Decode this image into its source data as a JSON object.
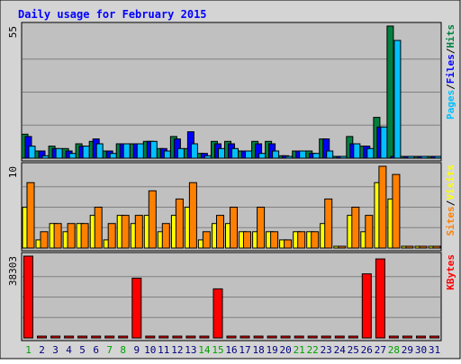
{
  "chart_data": {
    "type": "bar",
    "title": "Daily usage for February 2015",
    "categories": [
      "1",
      "2",
      "3",
      "4",
      "5",
      "6",
      "7",
      "8",
      "9",
      "10",
      "11",
      "12",
      "13",
      "14",
      "15",
      "16",
      "17",
      "18",
      "19",
      "20",
      "21",
      "22",
      "23",
      "24",
      "25",
      "26",
      "27",
      "28",
      "29",
      "30",
      "31"
    ],
    "weekend_days": [
      "1",
      "7",
      "8",
      "14",
      "15",
      "21",
      "22",
      "28"
    ],
    "colors": {
      "hits": "#008040",
      "files": "#0000ff",
      "pages": "#00c0ff",
      "visits": "#ffff00",
      "sites": "#ff8000",
      "kbytes": "#ff0000",
      "plot_bg": "#c0c0c0",
      "frame_bg": "#d4d4d4",
      "title_text": "#0000ff",
      "day_label": "#000080",
      "weekend_label": "#00a000"
    },
    "panels": [
      {
        "id": "hits",
        "max_label": "55",
        "ymax": 55,
        "right_legend": [
          {
            "text": "Pages",
            "color": "#00c0ff"
          },
          {
            "text": "/",
            "color": "#000000"
          },
          {
            "text": "Files",
            "color": "#0000ff"
          },
          {
            "text": "/",
            "color": "#000000"
          },
          {
            "text": "Hits",
            "color": "#008040"
          }
        ],
        "series": [
          {
            "name": "Hits",
            "color": "#008040",
            "values": [
              10,
              3,
              5,
              4,
              6,
              7,
              3,
              6,
              6,
              7,
              4,
              9,
              4,
              2,
              7,
              7,
              3,
              7,
              7,
              1,
              3,
              3,
              8,
              0,
              9,
              5,
              17,
              55,
              0,
              0,
              0
            ]
          },
          {
            "name": "Files",
            "color": "#0000ff",
            "values": [
              9,
              3,
              4,
              3,
              5,
              8,
              3,
              6,
              6,
              7,
              4,
              8,
              11,
              2,
              6,
              6,
              3,
              6,
              6,
              1,
              3,
              2,
              8,
              0,
              6,
              5,
              13,
              0,
              0,
              0,
              0
            ]
          },
          {
            "name": "Pages",
            "color": "#00c0ff",
            "values": [
              5,
              1,
              4,
              2,
              5,
              6,
              2,
              6,
              6,
              7,
              3,
              4,
              6,
              1,
              4,
              4,
              3,
              2,
              3,
              0,
              3,
              2,
              3,
              0,
              6,
              4,
              13,
              49,
              0,
              0,
              0
            ]
          }
        ]
      },
      {
        "id": "visits",
        "max_label": "10",
        "ymax": 10,
        "right_legend": [
          {
            "text": "Sites",
            "color": "#ff8000"
          },
          {
            "text": "/",
            "color": "#000000"
          },
          {
            "text": "Visits",
            "color": "#ffff00"
          }
        ],
        "series": [
          {
            "name": "Visits",
            "color": "#ffff00",
            "values": [
              5,
              1,
              3,
              2,
              3,
              4,
              1,
              4,
              3,
              4,
              2,
              4,
              5,
              1,
              3,
              3,
              2,
              2,
              2,
              1,
              2,
              2,
              3,
              0,
              4,
              2,
              8,
              6,
              0,
              0,
              0
            ]
          },
          {
            "name": "Sites",
            "color": "#ff8000",
            "values": [
              8,
              2,
              3,
              3,
              3,
              5,
              3,
              4,
              4,
              7,
              3,
              6,
              8,
              2,
              4,
              5,
              2,
              5,
              2,
              1,
              2,
              2,
              6,
              0,
              5,
              4,
              10,
              9,
              0,
              0,
              0
            ]
          }
        ]
      },
      {
        "id": "kbytes",
        "max_label": "38303",
        "ymax": 38303,
        "right_legend": [
          {
            "text": "KBytes",
            "color": "#ff0000"
          }
        ],
        "series": [
          {
            "name": "KBytes",
            "color": "#ff0000",
            "values": [
              38303,
              0,
              0,
              0,
              0,
              0,
              0,
              0,
              28000,
              0,
              0,
              0,
              0,
              0,
              23000,
              0,
              0,
              0,
              0,
              0,
              0,
              0,
              0,
              0,
              0,
              30000,
              37000,
              0,
              0,
              0,
              0
            ]
          }
        ]
      }
    ],
    "grid": true,
    "legend_position": "right"
  }
}
